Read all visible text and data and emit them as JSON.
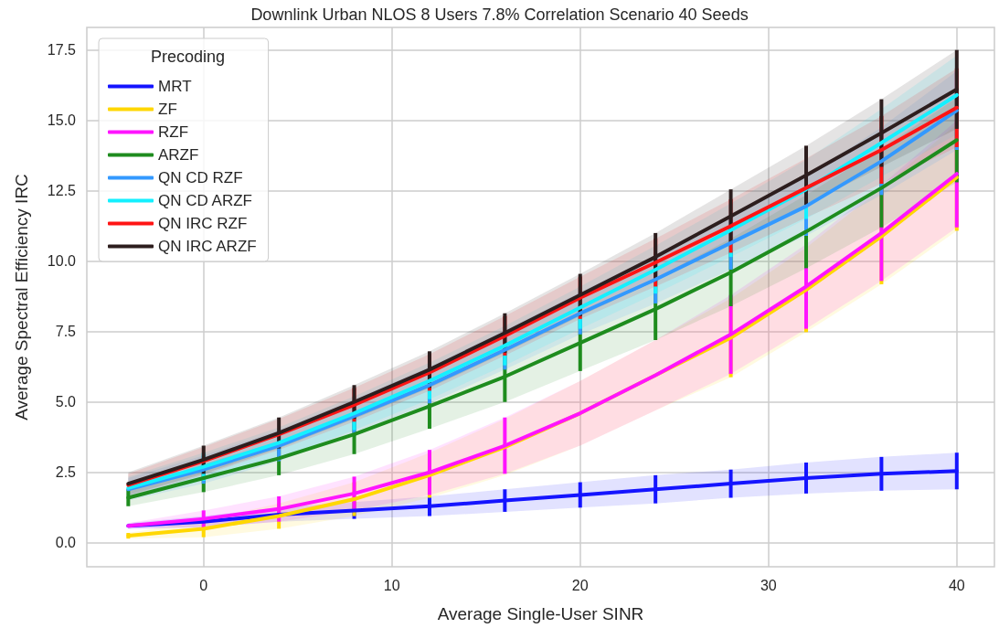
{
  "chart_data": {
    "type": "line",
    "title": "Downlink Urban NLOS 8 Users 7.8% Correlation Scenario 40 Seeds",
    "xlabel": "Average Single-User SINR",
    "ylabel": "Average Spectral Efficiency IRC",
    "legend_title": "Precoding",
    "x": [
      -4,
      0,
      4,
      8,
      12,
      16,
      20,
      24,
      28,
      32,
      36,
      40
    ],
    "xlim": [
      -6.2,
      42
    ],
    "xticks": [
      0,
      10,
      20,
      30,
      40
    ],
    "ylim": [
      -0.85,
      18.3
    ],
    "yticks": [
      {
        "value": 0,
        "label": "0.0"
      },
      {
        "value": 2.5,
        "label": "2.5"
      },
      {
        "value": 5,
        "label": "5.0"
      },
      {
        "value": 7.5,
        "label": "7.5"
      },
      {
        "value": 10,
        "label": "10.0"
      },
      {
        "value": 12.5,
        "label": "12.5"
      },
      {
        "value": 15,
        "label": "15.0"
      },
      {
        "value": 17.5,
        "label": "17.5"
      }
    ],
    "grid": true,
    "legend": "top left",
    "line_style": "solid",
    "series": [
      {
        "name": "MRT",
        "color": "#1414ff",
        "values": [
          0.6,
          0.75,
          1.0,
          1.15,
          1.3,
          1.5,
          1.7,
          1.9,
          2.1,
          2.3,
          2.45,
          2.55
        ],
        "errors": [
          null,
          null,
          null,
          0.3,
          0.35,
          0.4,
          0.45,
          0.5,
          0.5,
          0.55,
          0.6,
          0.65
        ],
        "lower": [
          0.5,
          0.55,
          0.75,
          0.85,
          0.95,
          1.1,
          1.25,
          1.4,
          1.6,
          1.75,
          1.85,
          1.9
        ],
        "upper": [
          0.7,
          0.95,
          1.25,
          1.45,
          1.65,
          1.9,
          2.15,
          2.4,
          2.6,
          2.85,
          3.05,
          3.2
        ]
      },
      {
        "name": "ZF",
        "color": "#ffd700",
        "values": [
          0.25,
          0.5,
          0.95,
          1.55,
          2.4,
          3.4,
          4.6,
          5.95,
          7.28,
          8.98,
          10.88,
          12.98
        ],
        "errors": [
          0.1,
          0.3,
          0.45,
          0.6,
          0.8,
          null,
          null,
          null,
          1.4,
          1.5,
          1.7,
          1.9
        ],
        "lower": [
          0.15,
          0.2,
          0.5,
          0.95,
          1.6,
          2.4,
          3.45,
          4.7,
          5.88,
          7.48,
          9.18,
          11.08
        ],
        "upper": [
          0.35,
          0.8,
          1.4,
          2.15,
          3.2,
          4.4,
          5.75,
          7.2,
          8.68,
          10.48,
          12.58,
          14.88
        ]
      },
      {
        "name": "RZF",
        "color": "#ff14ff",
        "values": [
          0.6,
          0.85,
          1.2,
          1.75,
          2.5,
          3.45,
          4.6,
          5.95,
          7.4,
          9.1,
          11.0,
          13.1
        ],
        "errors": [
          null,
          0.3,
          0.45,
          0.6,
          0.8,
          1.0,
          null,
          null,
          1.4,
          1.5,
          1.7,
          1.9
        ],
        "lower": [
          0.5,
          0.55,
          0.75,
          1.15,
          1.7,
          2.45,
          3.45,
          4.7,
          6.0,
          7.6,
          9.3,
          11.2
        ],
        "upper": [
          0.7,
          1.15,
          1.65,
          2.35,
          3.3,
          4.45,
          5.75,
          7.2,
          8.8,
          10.6,
          12.7,
          15.0
        ]
      },
      {
        "name": "ARZF",
        "color": "#1e8c1e",
        "values": [
          1.6,
          2.3,
          3.0,
          3.85,
          4.85,
          5.9,
          7.1,
          8.3,
          9.6,
          11.05,
          12.6,
          14.3
        ],
        "errors": [
          0.3,
          0.5,
          0.6,
          0.7,
          0.8,
          0.9,
          1.0,
          1.1,
          1.2,
          1.3,
          1.4,
          1.5
        ],
        "lower": [
          1.3,
          1.8,
          2.4,
          3.15,
          4.05,
          5.0,
          6.1,
          7.2,
          8.4,
          9.75,
          11.2,
          12.8
        ],
        "upper": [
          1.9,
          2.8,
          3.6,
          4.55,
          5.65,
          6.8,
          8.1,
          9.4,
          10.8,
          12.35,
          14.0,
          15.8
        ]
      },
      {
        "name": "QN CD RZF",
        "color": "#3399ff",
        "values": [
          1.9,
          2.6,
          3.45,
          4.5,
          5.6,
          6.85,
          8.15,
          9.35,
          10.65,
          11.95,
          13.55,
          15.35
        ],
        "errors": [
          null,
          0.5,
          0.55,
          0.6,
          0.65,
          0.7,
          0.75,
          0.85,
          0.95,
          1.05,
          1.2,
          1.4
        ],
        "lower": [
          1.5,
          2.1,
          2.9,
          3.9,
          4.95,
          6.15,
          7.4,
          8.5,
          9.7,
          10.9,
          12.35,
          13.95
        ],
        "upper": [
          2.3,
          3.1,
          4.0,
          5.1,
          6.25,
          7.55,
          8.9,
          10.2,
          11.6,
          13.0,
          14.75,
          16.75
        ]
      },
      {
        "name": "QN CD ARZF",
        "color": "#14f0ff",
        "values": [
          1.95,
          2.7,
          3.55,
          4.6,
          5.75,
          7.0,
          8.35,
          9.7,
          11.1,
          12.55,
          14.2,
          15.9
        ],
        "errors": [
          null,
          0.5,
          null,
          0.6,
          0.65,
          0.7,
          0.75,
          0.85,
          0.95,
          1.05,
          null,
          null
        ],
        "lower": [
          1.55,
          2.2,
          3.0,
          4.0,
          5.1,
          6.3,
          7.6,
          8.85,
          10.15,
          11.5,
          13.0,
          14.5
        ],
        "upper": [
          2.35,
          3.2,
          4.1,
          5.2,
          6.4,
          7.7,
          9.1,
          10.55,
          12.05,
          13.6,
          15.4,
          17.3
        ]
      },
      {
        "name": "QN IRC RZF",
        "color": "#ff1414",
        "values": [
          2.05,
          2.9,
          3.85,
          4.9,
          6.05,
          7.35,
          8.7,
          9.95,
          11.25,
          12.6,
          13.95,
          15.45
        ],
        "errors": [
          null,
          null,
          null,
          0.6,
          0.65,
          0.7,
          0.75,
          0.85,
          0.95,
          null,
          1.2,
          1.4
        ],
        "lower": [
          1.65,
          2.4,
          3.3,
          4.3,
          5.4,
          6.65,
          7.95,
          9.1,
          10.3,
          11.55,
          12.75,
          14.05
        ],
        "upper": [
          2.45,
          3.4,
          4.4,
          5.5,
          6.7,
          8.05,
          9.45,
          10.8,
          12.2,
          13.65,
          15.15,
          16.85
        ]
      },
      {
        "name": "QN IRC ARZF",
        "color": "#2d1e1e",
        "values": [
          2.1,
          2.95,
          3.9,
          5.0,
          6.15,
          7.45,
          8.8,
          10.15,
          11.6,
          13.05,
          14.55,
          16.1
        ],
        "errors": [
          null,
          0.5,
          0.55,
          0.6,
          0.65,
          0.7,
          0.75,
          0.85,
          0.95,
          1.05,
          1.2,
          1.4
        ],
        "lower": [
          1.7,
          2.45,
          3.35,
          4.4,
          5.5,
          6.75,
          8.05,
          9.3,
          10.65,
          12.0,
          13.35,
          14.7
        ],
        "upper": [
          2.5,
          3.45,
          4.45,
          5.6,
          6.8,
          8.15,
          9.55,
          11.0,
          12.55,
          14.1,
          15.75,
          17.5
        ]
      }
    ]
  }
}
